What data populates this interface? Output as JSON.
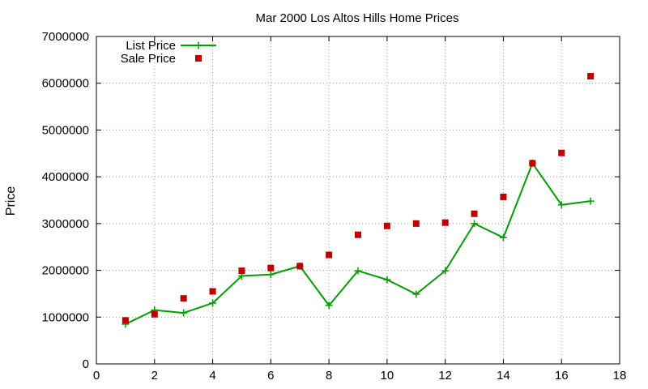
{
  "chart_data": {
    "type": "line",
    "title": "Mar 2000 Los Altos Hills Home Prices",
    "xlabel": "",
    "ylabel": "Price",
    "xlim": [
      0,
      18
    ],
    "ylim": [
      0,
      7000000
    ],
    "x_ticks": [
      0,
      2,
      4,
      6,
      8,
      10,
      12,
      14,
      16,
      18
    ],
    "y_ticks": [
      0,
      1000000,
      2000000,
      3000000,
      4000000,
      5000000,
      6000000,
      7000000
    ],
    "x_tick_labels": [
      "0",
      "2",
      "4",
      "6",
      "8",
      "10",
      "12",
      "14",
      "16",
      "18"
    ],
    "y_tick_labels": [
      "0",
      "1000000",
      "2000000",
      "3000000",
      "4000000",
      "5000000",
      "6000000",
      "7000000"
    ],
    "grid": true,
    "legend_position": "top-left",
    "series": [
      {
        "name": "List Price",
        "style": "line-with-plus-markers",
        "color": "#00a000",
        "x": [
          1,
          2,
          3,
          4,
          5,
          6,
          7,
          8,
          9,
          10,
          11,
          12,
          13,
          14,
          15,
          16,
          17
        ],
        "values": [
          850000,
          1150000,
          1090000,
          1300000,
          1880000,
          1910000,
          2090000,
          1250000,
          1990000,
          1800000,
          1490000,
          1990000,
          3000000,
          2700000,
          4290000,
          3400000,
          3480000
        ]
      },
      {
        "name": "Sale Price",
        "style": "square-markers",
        "color": "#c00000",
        "x": [
          1,
          2,
          3,
          4,
          5,
          6,
          7,
          8,
          9,
          10,
          11,
          12,
          13,
          14,
          15,
          16,
          17
        ],
        "values": [
          930000,
          1060000,
          1400000,
          1550000,
          1990000,
          2050000,
          2090000,
          2330000,
          2760000,
          2950000,
          3000000,
          3020000,
          3210000,
          3570000,
          4290000,
          4510000,
          6150000
        ]
      }
    ]
  }
}
